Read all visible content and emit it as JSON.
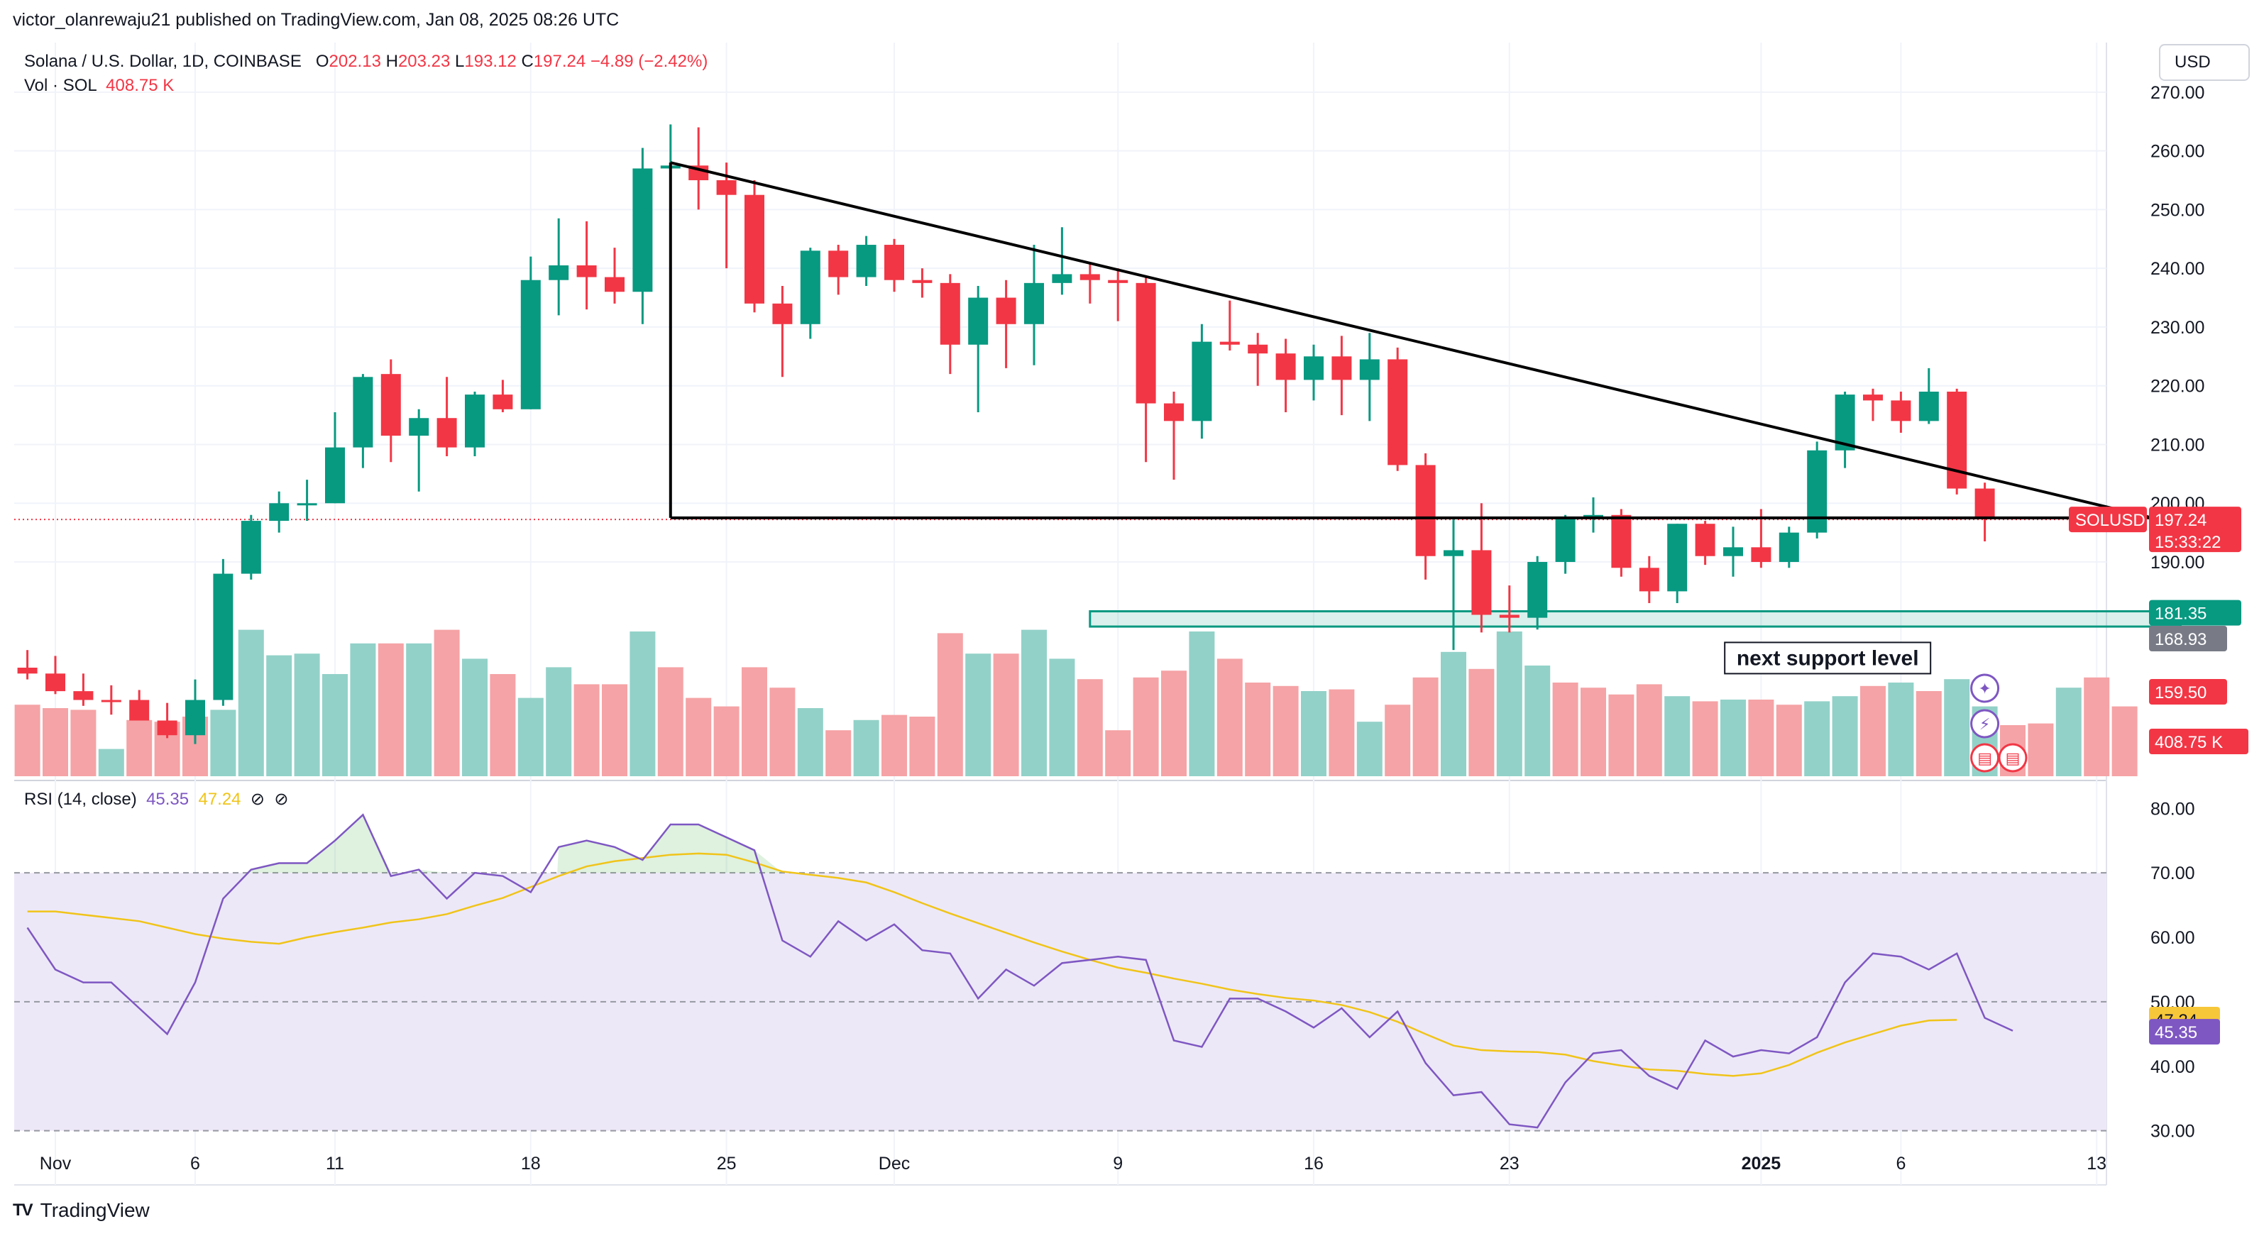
{
  "header": {
    "published": "victor_olanrewaju21 published on TradingView.com, Jan 08, 2025 08:26 UTC",
    "symbol_line": "Solana / U.S. Dollar, 1D, COINBASE",
    "o_label": "O",
    "o_value": "202.13",
    "h_label": "H",
    "h_value": "203.23",
    "l_label": "L",
    "l_value": "193.12",
    "c_label": "C",
    "c_value": "197.24",
    "change": "−4.89 (−2.42%)",
    "vol_label": "Vol · SOL",
    "vol_value": "408.75 K",
    "currency": "USD"
  },
  "rsi_legend": {
    "label": "RSI (14, close)",
    "rsi_value": "45.35",
    "ma_value": "47.24",
    "eye1": "⊘",
    "eye2": "⊘"
  },
  "brand": {
    "name": "TradingView",
    "logo": "TV"
  },
  "colors": {
    "up": "#089981",
    "down": "#f23645",
    "vol_up": "#92d1c8",
    "vol_down": "#f5a3a6",
    "rsi_line": "#7e57c2",
    "rsi_ma": "#f0c419",
    "rsi_band": "#ede8f7",
    "support": "#089981"
  },
  "chart_data": [
    {
      "type": "candlestick",
      "title": "Solana / U.S. Dollar, 1D, COINBASE",
      "ylim": [
        154,
        273
      ],
      "y_ticks": [
        "190.00",
        "200.00",
        "210.00",
        "220.00",
        "230.00",
        "240.00",
        "250.00",
        "260.00",
        "270.00"
      ],
      "x_ticks": [
        "Nov",
        "6",
        "11",
        "18",
        "25",
        "Dec",
        "9",
        "16",
        "23",
        "2025",
        "6",
        "13"
      ],
      "x_tick_days": [
        0,
        5,
        10,
        17,
        24,
        30,
        38,
        45,
        52,
        61,
        66,
        73
      ],
      "start_date": "2024-10-31",
      "ohlc": [
        [
          -1,
          172,
          175,
          170,
          171
        ],
        [
          0,
          171,
          174,
          167.5,
          168
        ],
        [
          1,
          168,
          171,
          165.5,
          166.5
        ],
        [
          2,
          166.5,
          169,
          164,
          166.2
        ],
        [
          3,
          166.5,
          168.2,
          163,
          163
        ],
        [
          4,
          163,
          166,
          160,
          160.5
        ],
        [
          5,
          160.5,
          170,
          159,
          166.5
        ],
        [
          6,
          166.5,
          190.5,
          165.5,
          188
        ],
        [
          7,
          188,
          198,
          187,
          197
        ],
        [
          8,
          197,
          202,
          195,
          200
        ],
        [
          9,
          200,
          204,
          197,
          200
        ],
        [
          10,
          200,
          215.5,
          200,
          209.5
        ],
        [
          11,
          209.5,
          222,
          206,
          221.5
        ],
        [
          12,
          222,
          224.5,
          207,
          211.5
        ],
        [
          13,
          211.5,
          216,
          202,
          214.5
        ],
        [
          14,
          214.5,
          221.5,
          208,
          209.5
        ],
        [
          15,
          209.5,
          219,
          208,
          218.5
        ],
        [
          16,
          218.5,
          221,
          215.5,
          216
        ],
        [
          17,
          216,
          242,
          216,
          238
        ],
        [
          18,
          238,
          248.5,
          232,
          240.5
        ],
        [
          19,
          240.5,
          248,
          233,
          238.5
        ],
        [
          20,
          238.5,
          243.5,
          234,
          236
        ],
        [
          21,
          236,
          260.5,
          230.5,
          257
        ],
        [
          22,
          257,
          264.5,
          245,
          257.5
        ],
        [
          23,
          257.5,
          264,
          250,
          255
        ],
        [
          24,
          255,
          258,
          240,
          252.5
        ],
        [
          25,
          252.5,
          255,
          232.5,
          234
        ],
        [
          26,
          234,
          237,
          221.5,
          230.5
        ],
        [
          27,
          230.5,
          243.5,
          228,
          243
        ],
        [
          28,
          243,
          244,
          235.5,
          238.5
        ],
        [
          29,
          238.5,
          245.5,
          237,
          244
        ],
        [
          30,
          244,
          245,
          236,
          238
        ],
        [
          31,
          238,
          240,
          235,
          237.5
        ],
        [
          32,
          237.5,
          239,
          222,
          227
        ],
        [
          33,
          227,
          237,
          215.5,
          235
        ],
        [
          34,
          235,
          238,
          223,
          230.5
        ],
        [
          35,
          230.5,
          244,
          223.5,
          237.5
        ],
        [
          36,
          237.5,
          247,
          235.5,
          239
        ],
        [
          37,
          239,
          241,
          234,
          238
        ],
        [
          38,
          238,
          240,
          231,
          237.5
        ],
        [
          39,
          237.5,
          238.5,
          207,
          217
        ],
        [
          40,
          217,
          219,
          204,
          214
        ],
        [
          41,
          214,
          230.5,
          211,
          227.5
        ],
        [
          42,
          227.5,
          234.5,
          226,
          227
        ],
        [
          43,
          227,
          229,
          220,
          225.5
        ],
        [
          44,
          225.5,
          228,
          215.5,
          221
        ],
        [
          45,
          221,
          227,
          217.5,
          225
        ],
        [
          46,
          225,
          228.5,
          215,
          221
        ],
        [
          47,
          221,
          229,
          214,
          224.5
        ],
        [
          48,
          224.5,
          226.5,
          205.5,
          206.5
        ],
        [
          49,
          206.5,
          208.5,
          187,
          191
        ],
        [
          50,
          191,
          197.5,
          175,
          192
        ],
        [
          51,
          192,
          200,
          178,
          181
        ],
        [
          52,
          181,
          186,
          178,
          180.5
        ],
        [
          53,
          180.5,
          191,
          178.5,
          190
        ],
        [
          54,
          190,
          198,
          188,
          197.5
        ],
        [
          55,
          197.5,
          201,
          195,
          198
        ],
        [
          56,
          198,
          199,
          187.5,
          189
        ],
        [
          57,
          189,
          191,
          183,
          185
        ],
        [
          58,
          185,
          196.5,
          183,
          196.5
        ],
        [
          59,
          196.5,
          197,
          189.5,
          191
        ],
        [
          60,
          191,
          196,
          187.5,
          192.5
        ],
        [
          61,
          192.5,
          199,
          189,
          190
        ],
        [
          62,
          190,
          196,
          189,
          195
        ],
        [
          63,
          195,
          210.5,
          194,
          209
        ],
        [
          64,
          209,
          219,
          206,
          218.5
        ],
        [
          65,
          218.5,
          219.5,
          214,
          217.5
        ],
        [
          66,
          217.5,
          219,
          212,
          214
        ],
        [
          67,
          214,
          223,
          213.5,
          219
        ],
        [
          68,
          219,
          219.5,
          201.5,
          202.5
        ],
        [
          69,
          202.5,
          203.5,
          193.5,
          197.5
        ]
      ],
      "volume_ylim": [
        0,
        1000
      ],
      "volume": [
        420,
        400,
        390,
        160,
        330,
        320,
        350,
        390,
        860,
        710,
        720,
        600,
        780,
        780,
        780,
        860,
        690,
        600,
        460,
        640,
        540,
        540,
        850,
        640,
        460,
        410,
        640,
        520,
        400,
        270,
        330,
        360,
        350,
        840,
        720,
        720,
        860,
        690,
        570,
        270,
        580,
        620,
        850,
        690,
        550,
        530,
        500,
        510,
        320,
        420,
        580,
        730,
        630,
        850,
        650,
        550,
        520,
        480,
        540,
        470,
        440,
        450,
        450,
        420,
        440,
        470,
        530,
        550,
        500,
        570,
        410,
        300,
        310,
        520,
        580,
        410
      ],
      "volume_up": [
        false,
        false,
        false,
        true,
        false,
        false,
        false,
        true,
        true,
        true,
        true,
        true,
        true,
        false,
        true,
        false,
        true,
        false,
        true,
        true,
        false,
        false,
        true,
        false,
        false,
        false,
        false,
        false,
        true,
        false,
        true,
        false,
        false,
        false,
        true,
        false,
        true,
        true,
        false,
        false,
        false,
        false,
        true,
        false,
        false,
        false,
        true,
        false,
        true,
        false,
        false,
        true,
        false,
        true,
        true,
        false,
        false,
        false,
        false,
        true,
        false,
        true,
        false,
        false,
        true,
        true,
        false,
        true,
        false,
        true,
        true,
        false,
        false,
        true,
        false,
        false
      ],
      "annotations": {
        "triangle_top": [
          [
            22,
            258
          ],
          [
            75,
            197.5
          ]
        ],
        "triangle_base_y": 197.5,
        "triangle_base_from": 22,
        "support_zone": {
          "from": 37,
          "to": 76,
          "low": 179,
          "high": 181.6
        },
        "support_text": "next support level",
        "support_label": "181.35",
        "last_price_label": "SOLUSD",
        "last_price": "197.24",
        "countdown": "15:33:22",
        "price_tags": [
          "168.93",
          "159.50",
          "408.75 K"
        ]
      }
    },
    {
      "type": "line",
      "title": "RSI (14, close)",
      "ylim": [
        26,
        83
      ],
      "y_ticks": [
        "30.00",
        "40.00",
        "50.00",
        "60.00",
        "70.00",
        "80.00"
      ],
      "bands": [
        30,
        50,
        70
      ],
      "series": [
        {
          "name": "RSI",
          "values": [
            61.5,
            55,
            53,
            53,
            49,
            45,
            53,
            66,
            70.5,
            71.5,
            71.5,
            75,
            79,
            69.5,
            70.5,
            66,
            70,
            69.5,
            67,
            74,
            75,
            74,
            72,
            77.5,
            77.5,
            75.5,
            73.5,
            59.5,
            57,
            62.5,
            59.5,
            62,
            58,
            57.5,
            50.5,
            55,
            52.5,
            56,
            56.5,
            57,
            56.5,
            44,
            43,
            50.5,
            50.5,
            48.5,
            46,
            49,
            44.5,
            48.5,
            40.5,
            35.5,
            36,
            31,
            30.5,
            37.5,
            42,
            42.5,
            38.5,
            36.5,
            44,
            41.5,
            42.5,
            42,
            44.5,
            53,
            57.5,
            57,
            55,
            57.5,
            47.5,
            45.5
          ]
        },
        {
          "name": "RSI-based MA",
          "values": [
            64,
            64,
            63.5,
            63,
            62.5,
            61.5,
            60.5,
            59.8,
            59.3,
            59.0,
            60.0,
            60.8,
            61.5,
            62.3,
            62.8,
            63.6,
            64.9,
            66.1,
            67.8,
            69.5,
            71.0,
            71.8,
            72.3,
            72.8,
            73.0,
            72.8,
            71.6,
            70.2,
            69.7,
            69.2,
            68.5,
            67.0,
            65.3,
            63.7,
            62.2,
            60.7,
            59.2,
            57.8,
            56.5,
            55.3,
            54.5,
            53.6,
            52.8,
            51.9,
            51.2,
            50.6,
            50.2,
            49.5,
            48.4,
            46.9,
            45.0,
            43.2,
            42.5,
            42.3,
            42.2,
            41.8,
            40.8,
            40.1,
            39.5,
            39.3,
            38.8,
            38.5,
            38.9,
            40.2,
            42.1,
            43.7,
            45.0,
            46.3,
            47.1,
            47.2
          ]
        }
      ]
    }
  ]
}
